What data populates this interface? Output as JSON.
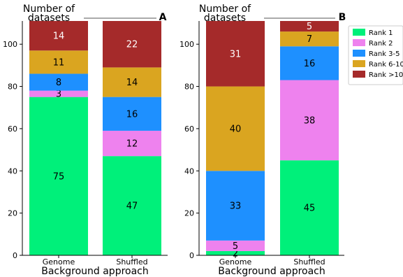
{
  "chart_data": [
    {
      "type": "bar",
      "stacked": true,
      "panel_label": "A",
      "title": "Number of datasets",
      "xlabel": "Background approach",
      "ylabel": "",
      "categories": [
        "Genome",
        "Shuffled"
      ],
      "ylim": [
        0,
        111
      ],
      "yticks": [
        "0",
        "20",
        "40",
        "60",
        "80",
        "100"
      ],
      "series": [
        {
          "name": "Rank 1",
          "color": "#00f07a",
          "values": [
            75,
            47
          ]
        },
        {
          "name": "Rank 2",
          "color": "#ee82ee",
          "values": [
            3,
            12
          ]
        },
        {
          "name": "Rank 3-5",
          "color": "#1e90ff",
          "values": [
            8,
            16
          ]
        },
        {
          "name": "Rank 6-10",
          "color": "#daa520",
          "values": [
            11,
            14
          ]
        },
        {
          "name": "Rank >10",
          "color": "#a52a2a",
          "values": [
            14,
            22
          ]
        }
      ],
      "grid": false
    },
    {
      "type": "bar",
      "stacked": true,
      "panel_label": "B",
      "title": "Number of datasets",
      "xlabel": "Background approach",
      "ylabel": "",
      "categories": [
        "Genome",
        "Shuffled"
      ],
      "ylim": [
        0,
        111
      ],
      "yticks": [
        "0",
        "20",
        "40",
        "60",
        "80",
        "100"
      ],
      "series": [
        {
          "name": "Rank 1",
          "color": "#00f07a",
          "values": [
            2,
            45
          ]
        },
        {
          "name": "Rank 2",
          "color": "#ee82ee",
          "values": [
            5,
            38
          ]
        },
        {
          "name": "Rank 3-5",
          "color": "#1e90ff",
          "values": [
            33,
            16
          ]
        },
        {
          "name": "Rank 6-10",
          "color": "#daa520",
          "values": [
            40,
            7
          ]
        },
        {
          "name": "Rank >10",
          "color": "#a52a2a",
          "values": [
            31,
            5
          ]
        }
      ],
      "grid": false,
      "legend": "right"
    }
  ],
  "legend": {
    "position": "right",
    "entries": [
      {
        "label": "Rank 1",
        "color": "#00f07a"
      },
      {
        "label": "Rank 2",
        "color": "#ee82ee"
      },
      {
        "label": "Rank 3-5",
        "color": "#1e90ff"
      },
      {
        "label": "Rank 6-10",
        "color": "#daa520"
      },
      {
        "label": "Rank >10",
        "color": "#a52a2a"
      }
    ]
  }
}
